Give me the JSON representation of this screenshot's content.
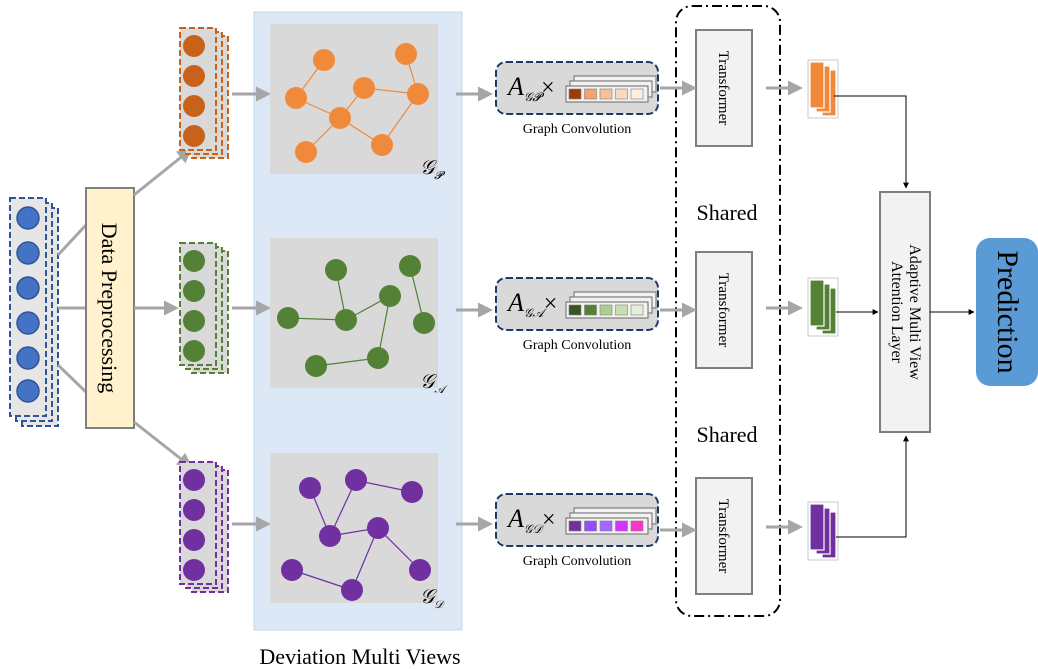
{
  "preprocessing_label": "Data Preprocessing",
  "views_label": "Deviation Multi Views",
  "graphs": [
    {
      "id": "p",
      "symbol": "𝒢",
      "subscript": "𝓟",
      "color": "#f08a3a",
      "stack_color": "#c8621b"
    },
    {
      "id": "a",
      "symbol": "𝒢",
      "subscript": "𝒜",
      "color": "#538135",
      "stack_color": "#538135"
    },
    {
      "id": "d",
      "symbol": "𝒢",
      "subscript": "𝒟",
      "color": "#7030a0",
      "stack_color": "#7030a0"
    }
  ],
  "conv_label": "Graph Convolution",
  "conv_formula": {
    "base": "A",
    "times": "×"
  },
  "conv_cells": [
    [
      "#9e3d00",
      "#f4a26c",
      "#f8c09a",
      "#fbd8c0",
      "#fdeee2"
    ],
    [
      "#375623",
      "#548235",
      "#a9d08e",
      "#c6e0b4",
      "#e2efda"
    ],
    [
      "#7030a0",
      "#8f4fff",
      "#a566ff",
      "#d633ff",
      "#ff33cc"
    ]
  ],
  "transformer_label": "Transformer",
  "shared_label": "Shared",
  "attention_label_line1": "Adaptive Multi View",
  "attention_label_line2": "Attention Layer",
  "prediction_label": "Prediction",
  "colors": {
    "input_node": "#4472c4",
    "input_border": "#2f5597",
    "preprocess_fill": "#fff2cc",
    "preprocess_border": "#7f7f7f",
    "views_panel": "#dce8f5",
    "graph_bg": "#d9d9d9",
    "prediction": "#5b9bd5",
    "arrow": "#a6a6a6"
  }
}
